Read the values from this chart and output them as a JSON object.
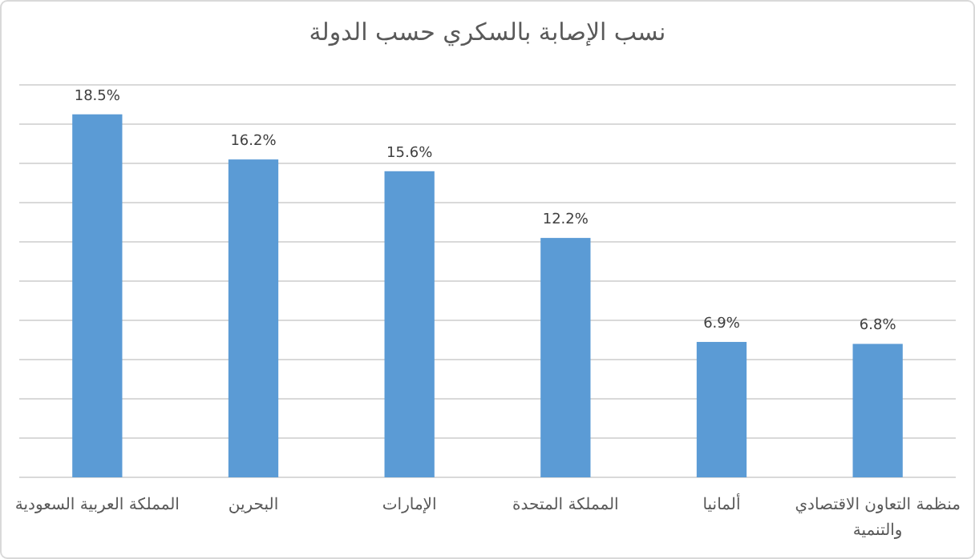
{
  "chart_data": {
    "type": "bar",
    "title": "نسب الإصابة بالسكري حسب الدولة",
    "categories": [
      "المملكة العربية السعودية",
      "البحرين",
      "الإمارات",
      "المملكة المتحدة",
      "ألمانيا",
      "منظمة التعاون الاقتصادي والتنمية"
    ],
    "values": [
      18.5,
      16.2,
      15.6,
      12.2,
      6.9,
      6.8
    ],
    "value_labels": [
      "18.5%",
      "16.2%",
      "15.6%",
      "12.2%",
      "6.9%",
      "6.8%"
    ],
    "color": "#5b9bd5",
    "ylim": [
      0,
      20
    ],
    "yticks": [
      {
        "value": 0,
        "label": null
      },
      {
        "value": 2,
        "label": null
      },
      {
        "value": 4,
        "label": null
      },
      {
        "value": 6,
        "label": null
      },
      {
        "value": 8,
        "label": null
      },
      {
        "value": 10,
        "label": null
      },
      {
        "value": 12,
        "label": null
      },
      {
        "value": 14,
        "label": null
      },
      {
        "value": 16,
        "label": null
      },
      {
        "value": 18,
        "label": null
      },
      {
        "value": 20,
        "label": null
      }
    ],
    "grid": "y",
    "tick_labels": "x"
  }
}
